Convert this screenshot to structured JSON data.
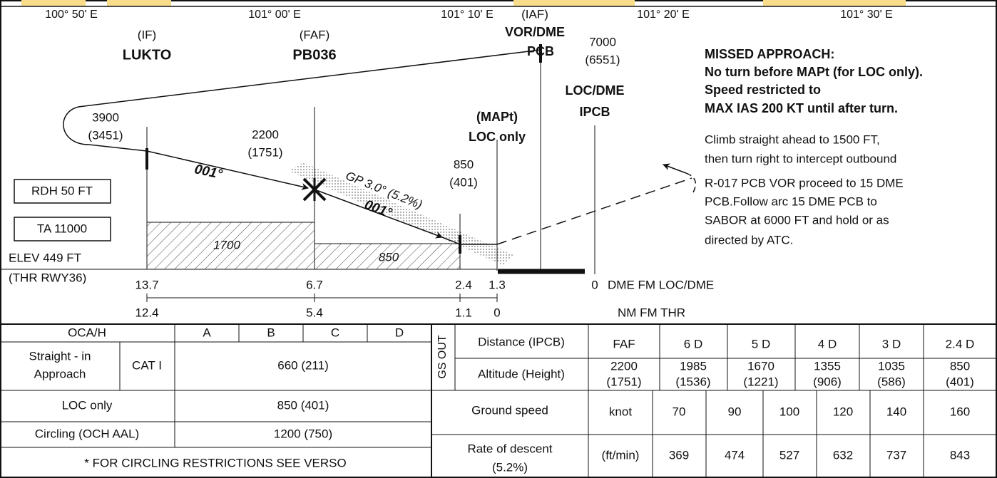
{
  "longitudes": [
    "100° 50' E",
    "101° 00' E",
    "101° 10' E",
    "101° 20' E",
    "101° 30' E"
  ],
  "fixes": {
    "if": {
      "role": "(IF)",
      "name": "LUKTO"
    },
    "faf": {
      "role": "(FAF)",
      "name": "PB036"
    },
    "iaf": {
      "role": "(IAF)",
      "name": "VOR/DME",
      "facility": "PCB"
    }
  },
  "altitudes": {
    "iaf": [
      "7000",
      "(6551)"
    ],
    "if": [
      "3900",
      "(3451)"
    ],
    "faf": [
      "2200",
      "(1751)"
    ],
    "mapt": [
      "850",
      "(401)"
    ]
  },
  "mapt": [
    "(MAPt)",
    "LOC only"
  ],
  "locdme": [
    "LOC/DME",
    "IPCB"
  ],
  "glidepath": "GP 3.0° (5.2%)",
  "tracks": [
    "001°",
    "001°"
  ],
  "obstacles": [
    "1700",
    "850"
  ],
  "boxes": [
    "RDH 50 FT",
    "TA 11000"
  ],
  "elevation": [
    "ELEV 449 FT",
    "(THR RWY36)"
  ],
  "dme_scale": {
    "marks": [
      "13.7",
      "6.7",
      "2.4",
      "1.3",
      "0"
    ],
    "label": "DME FM LOC/DME"
  },
  "thr_scale": {
    "marks": [
      "12.4",
      "5.4",
      "1.1",
      "0"
    ],
    "label": "NM FM THR"
  },
  "missed_approach": {
    "heading": [
      "MISSED APPROACH:",
      "No turn before MAPt (for LOC only).",
      "Speed restricted to",
      "MAX IAS 200 KT until after turn."
    ],
    "instructions": [
      "Climb straight ahead to 1500 FT,",
      "then turn right to intercept outbound",
      "R-017 PCB VOR proceed to 15 DME",
      "PCB.Follow arc 15 DME PCB to",
      "SABOR at 6000 FT and hold or as",
      "directed by ATC."
    ]
  },
  "minima": {
    "header": [
      "OCA/H",
      "A",
      "B",
      "C",
      "D"
    ],
    "straight_in": {
      "label": [
        "Straight - in",
        "Approach"
      ],
      "category": "CAT I",
      "value": "660 (211)"
    },
    "loc_only": {
      "label": "LOC only",
      "value": "850 (401)"
    },
    "circling": {
      "label": "Circling (OCH AAL)",
      "value": "1200 (750)"
    },
    "note": "* FOR CIRCLING RESTRICTIONS SEE VERSO"
  },
  "gs_out": {
    "label": "GS OUT",
    "distance": {
      "label": "Distance (IPCB)",
      "values": [
        "FAF",
        "6 D",
        "5 D",
        "4 D",
        "3 D",
        "2.4 D"
      ]
    },
    "altitude": {
      "label": "Altitude (Height)",
      "values": [
        [
          "2200",
          "(1751)"
        ],
        [
          "1985",
          "(1536)"
        ],
        [
          "1670",
          "(1221)"
        ],
        [
          "1355",
          "(906)"
        ],
        [
          "1035",
          "(586)"
        ],
        [
          "850",
          "(401)"
        ]
      ]
    }
  },
  "descent": {
    "ground_speed": {
      "label": "Ground speed",
      "unit": "knot",
      "values": [
        "70",
        "90",
        "100",
        "120",
        "140",
        "160"
      ]
    },
    "rate": {
      "label": [
        "Rate of descent",
        "(5.2%)"
      ],
      "unit": "(ft/min)",
      "values": [
        "369",
        "474",
        "527",
        "632",
        "737",
        "843"
      ]
    }
  }
}
